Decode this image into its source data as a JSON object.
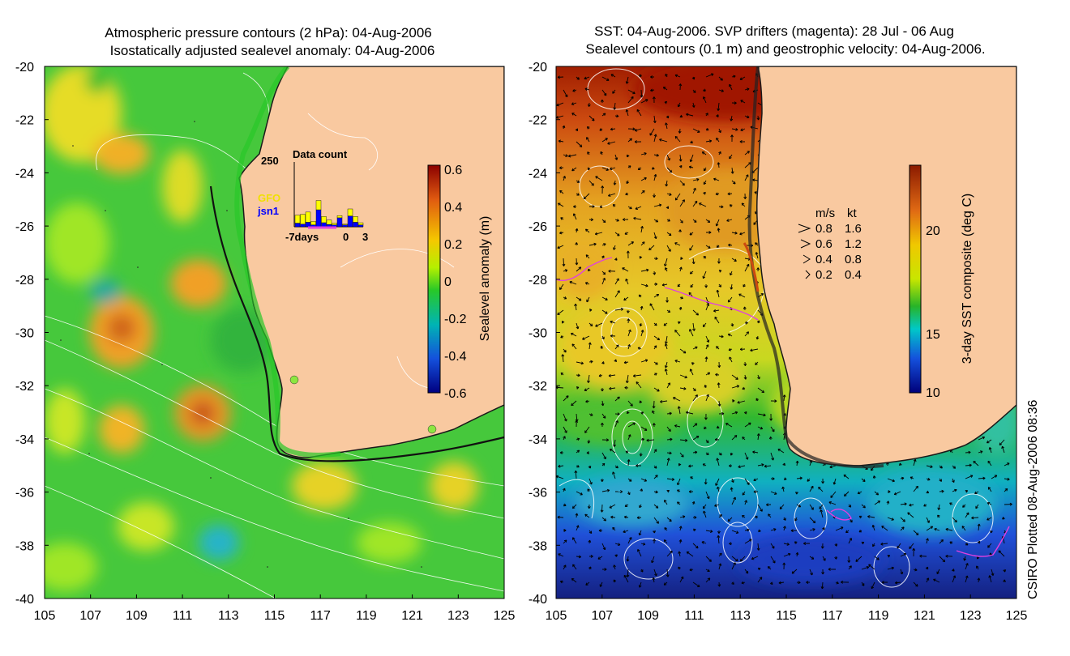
{
  "left_panel": {
    "title_line1": "Atmospheric pressure contours (2 hPa): 04-Aug-2006",
    "title_line2": "Isostatically adjusted sealevel anomaly: 04-Aug-2006",
    "colorbar": {
      "label": "Sealevel anomaly (m)",
      "ticks": [
        "0.6",
        "0.4",
        "0.2",
        "0",
        "-0.2",
        "-0.4",
        "-0.6"
      ]
    },
    "inset": {
      "title": "Data count",
      "ymax_label": "250",
      "xlabel_left": "-7days",
      "xlabel_mid": "0",
      "xlabel_right": "3",
      "series": [
        {
          "name": "GFO",
          "color": "#ffff00"
        },
        {
          "name": "jsn1",
          "color": "#0000ff"
        }
      ]
    }
  },
  "right_panel": {
    "title_line1": "SST: 04-Aug-2006. SVP drifters (magenta): 28 Jul - 06 Aug",
    "title_line2": "Sealevel contours (0.1 m) and geostrophic velocity: 04-Aug-2006.",
    "colorbar": {
      "label": "3-day SST composite (deg C)",
      "ticks": [
        "20",
        "15",
        "10"
      ]
    },
    "velocity_legend": {
      "header_ms": "m/s",
      "header_kt": "kt",
      "rows": [
        {
          "ms": "0.8",
          "kt": "1.6"
        },
        {
          "ms": "0.6",
          "kt": "1.2"
        },
        {
          "ms": "0.4",
          "kt": "0.8"
        },
        {
          "ms": "0.2",
          "kt": "0.4"
        }
      ]
    }
  },
  "axes": {
    "lat_ticks": [
      "-20",
      "-22",
      "-24",
      "-26",
      "-28",
      "-30",
      "-32",
      "-34",
      "-36",
      "-38",
      "-40"
    ],
    "lon_ticks": [
      "105",
      "107",
      "109",
      "111",
      "113",
      "115",
      "117",
      "119",
      "121",
      "123",
      "125"
    ]
  },
  "credit": "CSIRO Plotted 08-Aug-2006 08:36",
  "colors": {
    "land": "#f9c9a0",
    "ocean_green": "#32c832",
    "sst_warm": "#c84614",
    "sst_cold": "#0a28a0",
    "drifter": "#e040e0"
  }
}
